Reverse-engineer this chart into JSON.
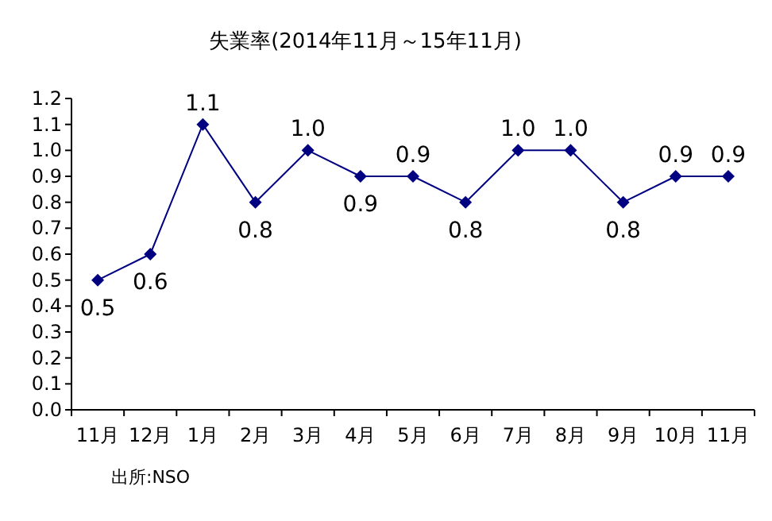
{
  "chart_data": {
    "type": "line",
    "title": "失業率(2014年11月～15年11月)",
    "categories": [
      "11月",
      "12月",
      "1月",
      "2月",
      "3月",
      "4月",
      "5月",
      "6月",
      "7月",
      "8月",
      "9月",
      "10月",
      "11月"
    ],
    "series": [
      {
        "color": "#000080",
        "values": [
          0.5,
          0.6,
          1.1,
          0.8,
          1.0,
          0.9,
          0.9,
          0.8,
          1.0,
          1.0,
          0.8,
          0.9,
          0.9
        ],
        "value_labels": [
          "0.5",
          "0.6",
          "1.1",
          "0.8",
          "1.0",
          "0.9",
          "0.9",
          "0.8",
          "1.0",
          "1.0",
          "0.8",
          "0.9",
          "0.9"
        ]
      }
    ],
    "ylim": [
      0,
      1.2
    ],
    "yticks": [
      {
        "value": 0,
        "label": "0.0"
      },
      {
        "value": 0.1,
        "label": "0.1"
      },
      {
        "value": 0.2,
        "label": "0.2"
      },
      {
        "value": 0.3,
        "label": "0.3"
      },
      {
        "value": 0.4,
        "label": "0.4"
      },
      {
        "value": 0.5,
        "label": "0.5"
      },
      {
        "value": 0.6,
        "label": "0.6"
      },
      {
        "value": 0.7,
        "label": "0.7"
      },
      {
        "value": 0.8,
        "label": "0.8"
      },
      {
        "value": 0.9,
        "label": "0.9"
      },
      {
        "value": 1,
        "label": "1.0"
      },
      {
        "value": 1.1,
        "label": "1.1"
      },
      {
        "value": 1.2,
        "label": "1.2"
      }
    ],
    "marker": "diamond",
    "line_style": "solid",
    "grid": false,
    "annotations": [
      "出所:NSO"
    ]
  }
}
